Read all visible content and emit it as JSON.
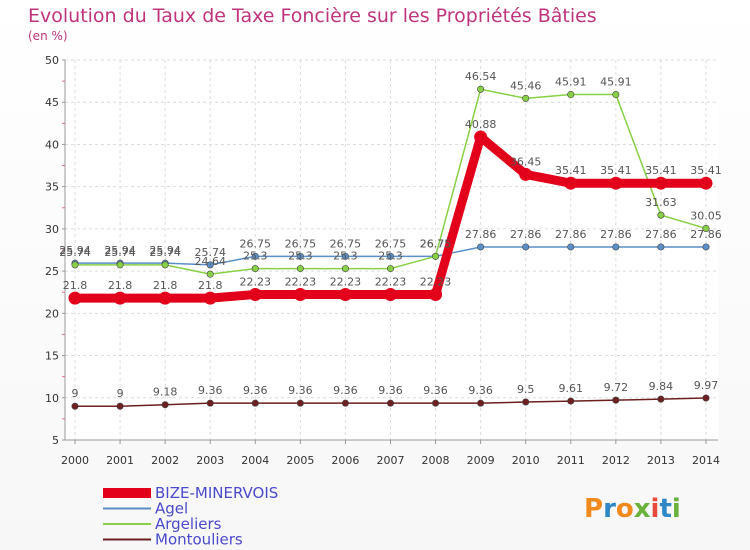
{
  "chart_data": {
    "type": "line",
    "title": "Evolution du Taux de Taxe Foncière sur les Propriétés Bâties",
    "subtitle": "(en %)",
    "categories": [
      "2000",
      "2001",
      "2002",
      "2003",
      "2004",
      "2005",
      "2006",
      "2007",
      "2008",
      "2009",
      "2010",
      "2011",
      "2012",
      "2013",
      "2014"
    ],
    "ylim": [
      5,
      50
    ],
    "yticks": [
      5,
      10,
      15,
      20,
      25,
      30,
      35,
      40,
      45,
      50
    ],
    "grid": true,
    "legend_position": "bottom-left",
    "series": [
      {
        "name": "BIZE-MINERVOIS",
        "color": "#e3001b",
        "values": [
          21.8,
          21.8,
          21.8,
          21.8,
          22.23,
          22.23,
          22.23,
          22.23,
          22.23,
          40.88,
          36.45,
          35.41,
          35.41,
          35.41,
          35.41
        ],
        "labels": [
          "21.8",
          "21.8",
          "21.8",
          "21.8",
          "22.23",
          "22.23",
          "22.23",
          "22.23",
          "22.23",
          "40.88",
          "36.45",
          "35.41",
          "35.41",
          "35.41",
          "35.41"
        ]
      },
      {
        "name": "Agel",
        "color": "#5b8fc7",
        "values": [
          25.94,
          25.94,
          25.94,
          25.74,
          26.75,
          26.75,
          26.75,
          26.75,
          26.75,
          27.86,
          27.86,
          27.86,
          27.86,
          27.86,
          27.86
        ],
        "labels": [
          "25.94",
          "25.94",
          "25.94",
          "25.74",
          "26.75",
          "26.75",
          "26.75",
          "26.75",
          "26.75",
          "27.86",
          "27.86",
          "27.86",
          "27.86",
          "27.86",
          "27.86"
        ]
      },
      {
        "name": "Argeliers",
        "color": "#88d045",
        "values": [
          25.74,
          25.74,
          25.74,
          24.64,
          25.3,
          25.3,
          25.3,
          25.3,
          26.75,
          46.54,
          45.46,
          45.91,
          45.91,
          31.63,
          30.05
        ],
        "labels": [
          "25.74",
          "25.74",
          "25.74",
          "24.64",
          "25.3",
          "25.3",
          "25.3",
          "25.3",
          "26.75",
          "46.54",
          "45.46",
          "45.91",
          "45.91",
          "31.63",
          "30.05"
        ]
      },
      {
        "name": "Montouliers",
        "color": "#6e1f1f",
        "values": [
          9,
          9,
          9.18,
          9.36,
          9.36,
          9.36,
          9.36,
          9.36,
          9.36,
          9.36,
          9.5,
          9.61,
          9.72,
          9.84,
          9.97
        ],
        "labels": [
          "9",
          "9",
          "9.18",
          "9.36",
          "9.36",
          "9.36",
          "9.36",
          "9.36",
          "9.36",
          "9.36",
          "9.5",
          "9.61",
          "9.72",
          "9.84",
          "9.97"
        ]
      }
    ]
  },
  "branding": {
    "logo_text": "Proxiti"
  }
}
